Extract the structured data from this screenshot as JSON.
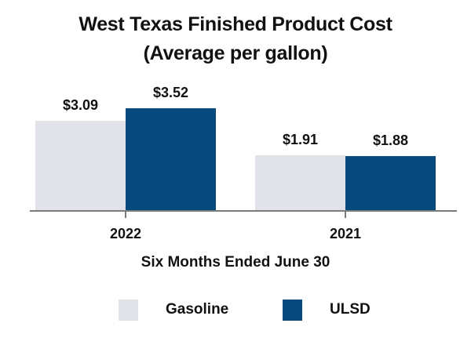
{
  "chart_data": {
    "type": "bar",
    "title": "West Texas Finished Product Cost",
    "subtitle": "(Average per gallon)",
    "xlabel": "Six Months Ended June 30",
    "ylabel": "",
    "categories": [
      "2022",
      "2021"
    ],
    "series": [
      {
        "name": "Gasoline",
        "values": [
          3.09,
          1.91
        ],
        "labels": [
          "$3.09",
          "$1.91"
        ],
        "color": "#e2e3e8"
      },
      {
        "name": "ULSD",
        "values": [
          3.52,
          1.88
        ],
        "labels": [
          "$3.52",
          "$1.88"
        ],
        "color": "#064a7d"
      }
    ],
    "ylim": [
      0,
      4
    ],
    "grid": false,
    "legend": "bottom"
  }
}
